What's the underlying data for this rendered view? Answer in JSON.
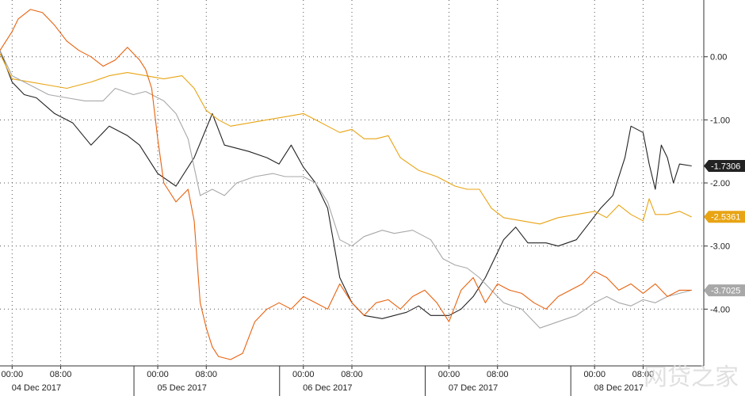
{
  "chart_data": {
    "type": "line",
    "title": "",
    "xlabel": "",
    "ylabel": "",
    "ylim": [
      -4.9,
      0.9
    ],
    "yticks": [
      "0.00",
      "-1.00",
      "-2.00",
      "-3.00",
      "-4.00"
    ],
    "ytick_values": [
      0,
      -1,
      -2,
      -3,
      -4
    ],
    "grid": true,
    "legend": "none",
    "x_time_labels": [
      "00:00",
      "08:00",
      "00:00",
      "08:00",
      "00:00",
      "08:00",
      "00:00",
      "08:00",
      "00:00",
      "08:00"
    ],
    "x_time_hours": [
      0,
      8,
      24,
      32,
      48,
      56,
      72,
      80,
      96,
      104
    ],
    "x_dates": [
      "04 Dec 2017",
      "05 Dec 2017",
      "06 Dec 2017",
      "07 Dec 2017",
      "08 Dec 2017"
    ],
    "x_date_hours": [
      4,
      28,
      52,
      76,
      100
    ],
    "x_range_hours": [
      -2,
      114
    ],
    "series": [
      {
        "color": "#222222",
        "end_label": "-1.7306",
        "end_value": -1.7306,
        "x": [
          -2,
          0,
          2,
          4,
          7,
          10,
          13,
          16,
          19,
          21,
          24,
          27,
          30,
          33,
          35,
          37,
          39,
          42,
          44,
          46,
          48,
          50,
          52,
          54,
          56,
          58,
          61,
          63,
          65,
          67,
          69,
          72,
          74,
          76,
          78,
          81,
          83,
          85,
          88,
          90,
          93,
          95,
          97,
          99,
          101,
          102,
          104,
          105,
          106,
          107,
          108,
          109,
          110,
          112
        ],
        "y": [
          0.1,
          -0.4,
          -0.6,
          -0.65,
          -0.9,
          -1.05,
          -1.4,
          -1.1,
          -1.25,
          -1.4,
          -1.85,
          -2.05,
          -1.6,
          -0.9,
          -1.4,
          -1.45,
          -1.5,
          -1.6,
          -1.7,
          -1.4,
          -1.75,
          -2.0,
          -2.4,
          -3.5,
          -3.9,
          -4.1,
          -4.15,
          -4.1,
          -4.05,
          -3.95,
          -4.1,
          -4.1,
          -4.0,
          -3.8,
          -3.5,
          -2.9,
          -2.7,
          -2.95,
          -2.95,
          -3.0,
          -2.9,
          -2.65,
          -2.4,
          -2.2,
          -1.6,
          -1.1,
          -1.2,
          -1.7,
          -2.1,
          -1.4,
          -1.6,
          -2.0,
          -1.7,
          -1.73
        ]
      },
      {
        "color": "#e8a413",
        "end_label": "-2.5361",
        "end_value": -2.5361,
        "x": [
          -2,
          0,
          3,
          6,
          9,
          11,
          13,
          16,
          19,
          22,
          25,
          28,
          30,
          32,
          34,
          36,
          39,
          42,
          45,
          48,
          50,
          52,
          54,
          56,
          58,
          60,
          62,
          64,
          67,
          70,
          73,
          75,
          77,
          79,
          81,
          84,
          87,
          90,
          93,
          96,
          98,
          100,
          102,
          104,
          105,
          106,
          108,
          110,
          112
        ],
        "y": [
          0.05,
          -0.35,
          -0.4,
          -0.45,
          -0.5,
          -0.45,
          -0.4,
          -0.3,
          -0.25,
          -0.3,
          -0.35,
          -0.3,
          -0.5,
          -0.85,
          -1.0,
          -1.1,
          -1.05,
          -1.0,
          -0.95,
          -0.9,
          -1.0,
          -1.1,
          -1.2,
          -1.15,
          -1.3,
          -1.3,
          -1.25,
          -1.6,
          -1.8,
          -1.9,
          -2.05,
          -2.1,
          -2.1,
          -2.4,
          -2.55,
          -2.6,
          -2.65,
          -2.55,
          -2.5,
          -2.45,
          -2.55,
          -2.35,
          -2.5,
          -2.6,
          -2.25,
          -2.5,
          -2.5,
          -2.45,
          -2.54
        ]
      },
      {
        "color": "#a8a8a8",
        "end_label": "-3.7025",
        "end_value": -3.7025,
        "x": [
          -2,
          0,
          2,
          4,
          6,
          9,
          12,
          15,
          17,
          20,
          22,
          25,
          27,
          29,
          31,
          33,
          35,
          37,
          40,
          43,
          45,
          48,
          50,
          52,
          54,
          56,
          58,
          61,
          63,
          66,
          69,
          71,
          73,
          75,
          77,
          79,
          81,
          84,
          87,
          90,
          93,
          96,
          98,
          100,
          102,
          104,
          106,
          108,
          110,
          112
        ],
        "y": [
          0.1,
          -0.3,
          -0.4,
          -0.5,
          -0.6,
          -0.65,
          -0.7,
          -0.7,
          -0.5,
          -0.6,
          -0.55,
          -0.7,
          -0.9,
          -1.3,
          -2.2,
          -2.1,
          -2.2,
          -2.0,
          -1.9,
          -1.85,
          -1.9,
          -1.9,
          -2.0,
          -2.3,
          -2.9,
          -3.0,
          -2.85,
          -2.75,
          -2.8,
          -2.75,
          -2.9,
          -3.2,
          -3.3,
          -3.35,
          -3.5,
          -3.7,
          -3.9,
          -4.0,
          -4.3,
          -4.2,
          -4.1,
          -3.9,
          -3.8,
          -3.9,
          -3.95,
          -3.85,
          -3.9,
          -3.8,
          -3.75,
          -3.7
        ]
      },
      {
        "color": "#e8620f",
        "end_label": "-3.7025",
        "end_value": -3.7025,
        "x": [
          -2,
          0,
          1,
          3,
          5,
          7,
          9,
          11,
          13,
          15,
          17,
          19,
          21,
          22,
          23,
          24,
          25,
          27,
          29,
          30,
          31,
          32,
          33,
          34,
          36,
          38,
          40,
          42,
          44,
          46,
          48,
          50,
          52,
          54,
          56,
          58,
          60,
          62,
          64,
          66,
          68,
          70,
          72,
          74,
          76,
          78,
          80,
          82,
          84,
          86,
          88,
          90,
          92,
          94,
          96,
          98,
          100,
          102,
          104,
          106,
          108,
          110,
          112
        ],
        "y": [
          0.1,
          0.4,
          0.6,
          0.75,
          0.7,
          0.5,
          0.25,
          0.1,
          0.0,
          -0.15,
          -0.05,
          0.15,
          -0.05,
          -0.2,
          -0.5,
          -1.3,
          -2.0,
          -2.3,
          -2.1,
          -2.6,
          -3.9,
          -4.3,
          -4.6,
          -4.75,
          -4.8,
          -4.7,
          -4.2,
          -4.0,
          -3.9,
          -4.0,
          -3.8,
          -3.9,
          -4.0,
          -3.6,
          -3.9,
          -4.1,
          -3.9,
          -3.85,
          -4.0,
          -3.8,
          -3.7,
          -3.9,
          -4.2,
          -3.7,
          -3.5,
          -3.9,
          -3.6,
          -3.7,
          -3.75,
          -3.9,
          -4.0,
          -3.8,
          -3.7,
          -3.6,
          -3.4,
          -3.5,
          -3.7,
          -3.6,
          -3.75,
          -3.6,
          -3.8,
          -3.7,
          -3.7
        ]
      }
    ]
  },
  "watermark": "网贷之家"
}
